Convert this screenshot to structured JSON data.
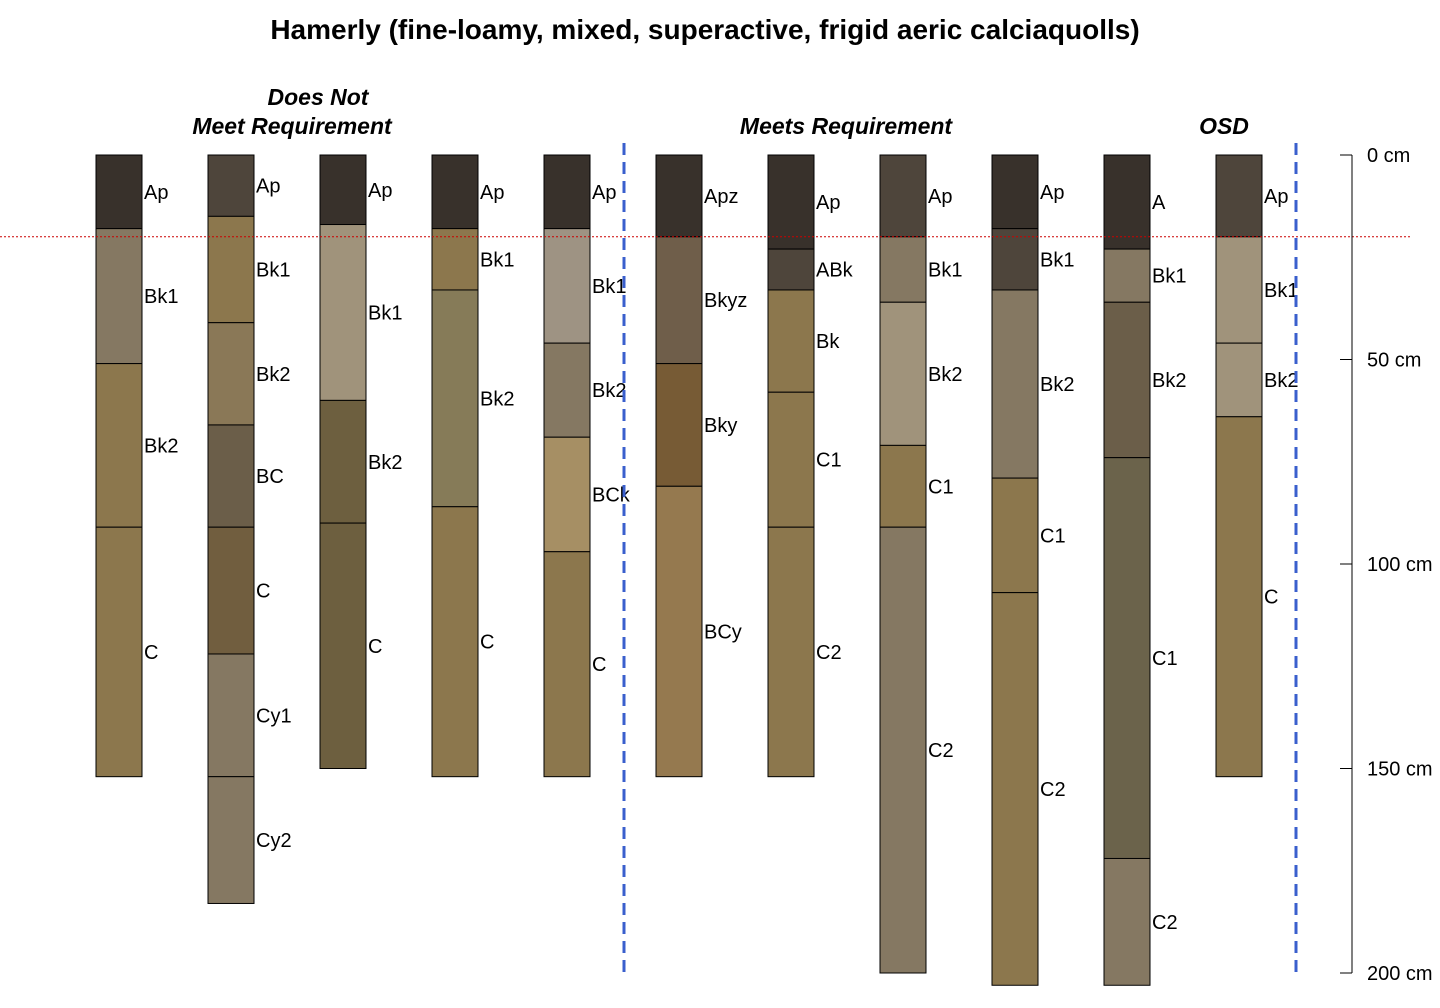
{
  "title": "Hamerly (fine-loamy, mixed, superactive, frigid aeric calciaquolls)",
  "group_labels": {
    "does_not_meet_line1": "Does Not",
    "does_not_meet_line2": "Meet Requirement",
    "meets": "Meets Requirement",
    "osd": "OSD"
  },
  "depth_axis": {
    "unit": "cm",
    "max": 200,
    "ticks": [
      {
        "value": 0,
        "label": "0 cm"
      },
      {
        "value": 50,
        "label": "50 cm"
      },
      {
        "value": 100,
        "label": "100 cm"
      },
      {
        "value": 150,
        "label": "150 cm"
      },
      {
        "value": 200,
        "label": "200 cm"
      }
    ]
  },
  "reference_depth_cm": 20,
  "reference_line_color": "#cc0000",
  "divider_color": "#3a5fcd",
  "dividers_after_profile": [
    5,
    11
  ],
  "chart_data": {
    "type": "soil-profile-sketch",
    "profiles": [
      {
        "horizons": [
          {
            "name": "Ap",
            "top": 0,
            "bottom": 18,
            "color": "#38312b"
          },
          {
            "name": "Bk1",
            "top": 18,
            "bottom": 51,
            "color": "#857862"
          },
          {
            "name": "Bk2",
            "top": 51,
            "bottom": 91,
            "color": "#8c774d"
          },
          {
            "name": "C",
            "top": 91,
            "bottom": 152,
            "color": "#8c774d"
          }
        ]
      },
      {
        "horizons": [
          {
            "name": "Ap",
            "top": 0,
            "bottom": 15,
            "color": "#4e453b"
          },
          {
            "name": "Bk1",
            "top": 15,
            "bottom": 41,
            "color": "#8c774d"
          },
          {
            "name": "Bk2",
            "top": 41,
            "bottom": 66,
            "color": "#8a7857"
          },
          {
            "name": "BC",
            "top": 66,
            "bottom": 91,
            "color": "#6b5e49"
          },
          {
            "name": "C",
            "top": 91,
            "bottom": 122,
            "color": "#715e3f"
          },
          {
            "name": "Cy1",
            "top": 122,
            "bottom": 152,
            "color": "#857862"
          },
          {
            "name": "Cy2",
            "top": 152,
            "bottom": 183,
            "color": "#857862"
          }
        ]
      },
      {
        "horizons": [
          {
            "name": "Ap",
            "top": 0,
            "bottom": 17,
            "color": "#38312b"
          },
          {
            "name": "Bk1",
            "top": 17,
            "bottom": 60,
            "color": "#a0937b"
          },
          {
            "name": "Bk2",
            "top": 60,
            "bottom": 90,
            "color": "#6d5f3f"
          },
          {
            "name": "C",
            "top": 90,
            "bottom": 150,
            "color": "#6d5f3f"
          }
        ]
      },
      {
        "horizons": [
          {
            "name": "Ap",
            "top": 0,
            "bottom": 18,
            "color": "#38312b"
          },
          {
            "name": "Bk1",
            "top": 18,
            "bottom": 33,
            "color": "#8c774d"
          },
          {
            "name": "Bk2",
            "top": 33,
            "bottom": 86,
            "color": "#867b58"
          },
          {
            "name": "C",
            "top": 86,
            "bottom": 152,
            "color": "#8c774d"
          }
        ]
      },
      {
        "horizons": [
          {
            "name": "Ap",
            "top": 0,
            "bottom": 18,
            "color": "#38312b"
          },
          {
            "name": "Bk1",
            "top": 18,
            "bottom": 46,
            "color": "#9e9383"
          },
          {
            "name": "Bk2",
            "top": 46,
            "bottom": 69,
            "color": "#857862"
          },
          {
            "name": "BCk",
            "top": 69,
            "bottom": 97,
            "color": "#a68f64"
          },
          {
            "name": "C",
            "top": 97,
            "bottom": 152,
            "color": "#8c774d"
          }
        ]
      },
      {
        "horizons": [
          {
            "name": "Apz",
            "top": 0,
            "bottom": 20,
            "color": "#38312b"
          },
          {
            "name": "Bkyz",
            "top": 20,
            "bottom": 51,
            "color": "#6f5e4a"
          },
          {
            "name": "Bky",
            "top": 51,
            "bottom": 81,
            "color": "#775b35"
          },
          {
            "name": "BCy",
            "top": 81,
            "bottom": 152,
            "color": "#95794f"
          }
        ]
      },
      {
        "horizons": [
          {
            "name": "Ap",
            "top": 0,
            "bottom": 23,
            "color": "#38312b"
          },
          {
            "name": "ABk",
            "top": 23,
            "bottom": 33,
            "color": "#4e453b"
          },
          {
            "name": "Bk",
            "top": 33,
            "bottom": 58,
            "color": "#8c774d"
          },
          {
            "name": "C1",
            "top": 58,
            "bottom": 91,
            "color": "#8c774d"
          },
          {
            "name": "C2",
            "top": 91,
            "bottom": 152,
            "color": "#8c774d"
          }
        ]
      },
      {
        "horizons": [
          {
            "name": "Ap",
            "top": 0,
            "bottom": 20,
            "color": "#4e453b"
          },
          {
            "name": "Bk1",
            "top": 20,
            "bottom": 36,
            "color": "#857862"
          },
          {
            "name": "Bk2",
            "top": 36,
            "bottom": 71,
            "color": "#a0937b"
          },
          {
            "name": "C1",
            "top": 71,
            "bottom": 91,
            "color": "#8c774d"
          },
          {
            "name": "C2",
            "top": 91,
            "bottom": 200,
            "color": "#857862"
          }
        ]
      },
      {
        "horizons": [
          {
            "name": "Ap",
            "top": 0,
            "bottom": 18,
            "color": "#38312b"
          },
          {
            "name": "Bk1",
            "top": 18,
            "bottom": 33,
            "color": "#4e453b"
          },
          {
            "name": "Bk2",
            "top": 33,
            "bottom": 79,
            "color": "#857862"
          },
          {
            "name": "C1",
            "top": 79,
            "bottom": 107,
            "color": "#8c774d"
          },
          {
            "name": "C2",
            "top": 107,
            "bottom": 203,
            "color": "#8c774d"
          }
        ]
      },
      {
        "horizons": [
          {
            "name": "A",
            "top": 0,
            "bottom": 23,
            "color": "#38312b"
          },
          {
            "name": "Bk1",
            "top": 23,
            "bottom": 36,
            "color": "#857862"
          },
          {
            "name": "Bk2",
            "top": 36,
            "bottom": 74,
            "color": "#6b5e49"
          },
          {
            "name": "C1",
            "top": 74,
            "bottom": 172,
            "color": "#6b634b"
          },
          {
            "name": "C2",
            "top": 172,
            "bottom": 203,
            "color": "#857862"
          }
        ]
      },
      {
        "horizons": [
          {
            "name": "Ap",
            "top": 0,
            "bottom": 20,
            "color": "#4e453b"
          },
          {
            "name": "Bk1",
            "top": 20,
            "bottom": 46,
            "color": "#a0937b"
          },
          {
            "name": "Bk2",
            "top": 46,
            "bottom": 64,
            "color": "#a0937b"
          },
          {
            "name": "C",
            "top": 64,
            "bottom": 152,
            "color": "#8c774d"
          }
        ]
      }
    ]
  }
}
